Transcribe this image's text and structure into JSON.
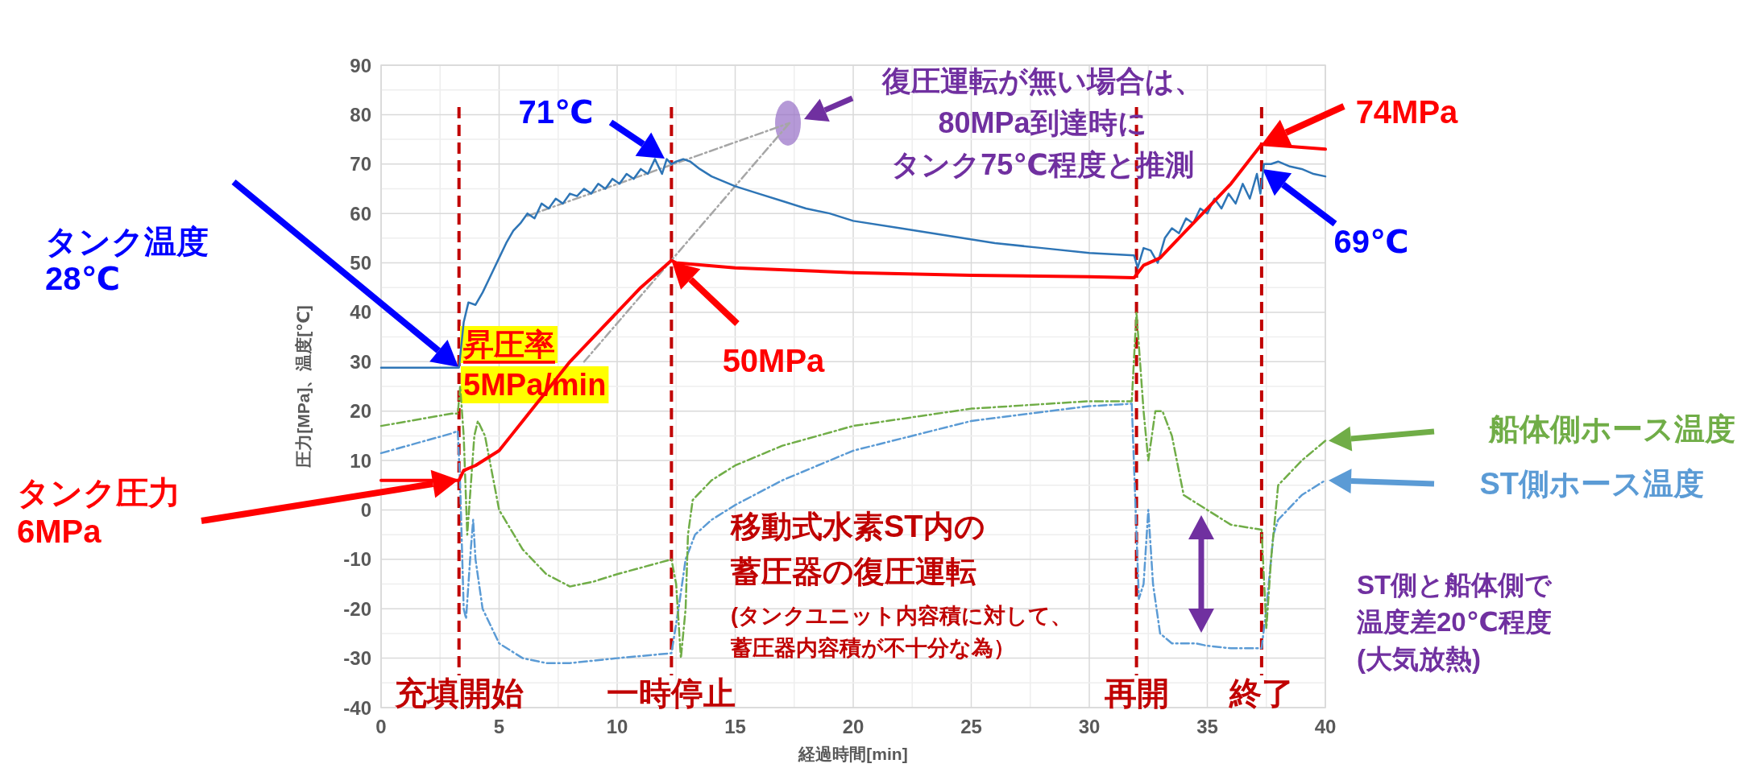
{
  "chart_data": {
    "type": "line",
    "xlabel": "経過時間[min]",
    "ylabel": "圧力[MPa]、温度[℃]",
    "xlim": [
      0,
      40
    ],
    "xticks": [
      0,
      5,
      10,
      15,
      20,
      25,
      30,
      35,
      40
    ],
    "ylim": [
      -40,
      90
    ],
    "yticks": [
      -40,
      -30,
      -20,
      -10,
      0,
      10,
      20,
      30,
      40,
      50,
      60,
      70,
      80,
      90
    ],
    "grid": true,
    "legend": "right",
    "series": [
      {
        "color": "#2e75b6",
        "line_style": "solid",
        "x": [
          0,
          3.3,
          3.5,
          3.7,
          4.0,
          4.3,
          4.6,
          5.0,
          5.3,
          5.6,
          5.9,
          6.2,
          6.5,
          6.8,
          7.1,
          7.4,
          7.7,
          8.0,
          8.3,
          8.6,
          8.9,
          9.2,
          9.5,
          9.8,
          10.1,
          10.4,
          10.7,
          11.0,
          11.3,
          11.6,
          11.9,
          12.1,
          12.3,
          12.5,
          12.8,
          13.1,
          13.5,
          14,
          15,
          16,
          17,
          18,
          19,
          20,
          22,
          24,
          26,
          28,
          30,
          31.9,
          32.05,
          32.3,
          32.6,
          32.9,
          33.2,
          33.5,
          33.8,
          34.1,
          34.4,
          34.7,
          35.0,
          35.3,
          35.6,
          35.9,
          36.2,
          36.5,
          36.8,
          37.1,
          37.25,
          37.4,
          37.7,
          38,
          38.5,
          39,
          39.5,
          40
        ],
        "values": [
          28.8,
          28.8,
          38,
          42,
          41.5,
          44,
          47,
          51,
          54,
          56.5,
          58,
          60,
          59,
          62,
          61,
          63,
          62,
          64,
          63.5,
          65,
          64,
          66,
          65,
          67,
          66,
          68,
          67,
          69,
          68,
          71,
          68,
          71,
          70,
          70.5,
          71,
          70.5,
          69,
          67.5,
          65.5,
          64,
          62.5,
          61,
          60,
          58.5,
          57,
          55.5,
          54,
          53,
          52,
          51.5,
          49,
          53,
          52.5,
          50,
          55,
          57,
          56,
          59,
          58,
          61,
          60,
          63,
          61,
          64,
          62,
          66,
          63,
          68,
          64,
          70,
          70,
          70.5,
          69.5,
          69,
          68,
          67.5
        ]
      },
      {
        "color": "#ff0000",
        "line_style": "solid",
        "x": [
          0,
          3.3,
          3.5,
          4.0,
          4.5,
          5,
          5.5,
          6,
          7,
          8,
          9,
          10,
          11,
          12.3,
          12.5,
          15,
          20,
          25,
          30,
          31.9,
          32.3,
          33,
          34,
          35,
          36,
          37.3,
          40
        ],
        "values": [
          6,
          6,
          8,
          9,
          10.5,
          12,
          15,
          18,
          24,
          30,
          35,
          40,
          45,
          50.5,
          50,
          49,
          48,
          47.5,
          47.2,
          47,
          49.5,
          51,
          56,
          61,
          66,
          74,
          73
        ]
      },
      {
        "name": "船体側ホース温度",
        "color": "#70ad47",
        "line_style": "dashed",
        "x": [
          0,
          3.0,
          3.25,
          3.35,
          3.5,
          3.65,
          3.8,
          3.95,
          4.1,
          4.4,
          5,
          6,
          7,
          8,
          9,
          10,
          12.3,
          12.5,
          12.7,
          12.9,
          13.0,
          13.2,
          14,
          15,
          17,
          20,
          25,
          30,
          31.8,
          32.0,
          32.3,
          32.5,
          32.8,
          33.1,
          33.5,
          34,
          35,
          36,
          37.3,
          37.5,
          37.7,
          38,
          39,
          40
        ],
        "values": [
          17,
          19.5,
          19.5,
          25,
          15,
          -5,
          5,
          15,
          18,
          15,
          0,
          -8,
          -13,
          -15.5,
          -14.5,
          -13,
          -10,
          -15,
          -30,
          -20,
          -5,
          2,
          6,
          9,
          13,
          17,
          20.5,
          22,
          22,
          40,
          20,
          10,
          20,
          20,
          15,
          3,
          0,
          -3,
          -4,
          -24,
          -10,
          5,
          10,
          14
        ]
      },
      {
        "name": "ST側ホース温度",
        "color": "#5b9bd5",
        "line_style": "dashed",
        "x": [
          0,
          3.0,
          3.25,
          3.35,
          3.5,
          3.6,
          3.8,
          3.9,
          4.0,
          4.3,
          5,
          6,
          7,
          8,
          10,
          12.3,
          12.6,
          12.9,
          13.3,
          14,
          15,
          17,
          20,
          25,
          30,
          31.8,
          32.1,
          32.3,
          32.5,
          32.7,
          33,
          33.5,
          34.5,
          35,
          36,
          37.3,
          37.5,
          37.8,
          38,
          39,
          40
        ],
        "values": [
          11.5,
          15.5,
          16,
          5,
          -20,
          -22,
          -8,
          -2,
          -10,
          -20,
          -27,
          -30,
          -31,
          -31,
          -30,
          -29,
          -20,
          -10,
          -5,
          -2,
          1,
          6,
          12,
          18,
          21,
          21.5,
          -18,
          -15,
          0,
          -15,
          -25,
          -27,
          -27,
          -27.5,
          -28,
          -28,
          -20,
          -5,
          -2,
          3,
          6
        ]
      },
      {
        "color": "#a6a6a6",
        "line_style": "dashed",
        "x": [
          6.2,
          17.3
        ],
        "values": [
          59.5,
          78.3
        ]
      },
      {
        "color": "#a6a6a6",
        "line_style": "dashed",
        "x": [
          8.6,
          17.3
        ],
        "values": [
          30,
          78.3
        ]
      }
    ],
    "ref_lines": [
      {
        "axis": "x",
        "value": 3.3,
        "label": "充填開始",
        "color": "#c00000",
        "line_style": "dashed"
      },
      {
        "axis": "x",
        "value": 12.3,
        "label": "一時停止",
        "color": "#c00000",
        "line_style": "dashed"
      },
      {
        "axis": "x",
        "value": 32,
        "label": "再開",
        "color": "#c00000",
        "line_style": "dashed"
      },
      {
        "axis": "x",
        "value": 37.3,
        "label": "終了",
        "color": "#c00000",
        "line_style": "dashed"
      }
    ],
    "annotations": [
      "タンク温度\n28℃",
      "タンク圧力\n6MPa",
      "71℃",
      "50MPa",
      "74MPa",
      "69℃",
      "昇圧率\n5MPa/min",
      "復圧運転が無い場合は、80MPa到達時にタンク75℃程度と推測",
      "移動式水素ST内の蓄圧器の復圧運転",
      "(タンクユニット内容積に対して、蓄圧器内容積が不十分な為）",
      "ST側と船体側で温度差20℃程度(大気放熱)"
    ]
  }
}
